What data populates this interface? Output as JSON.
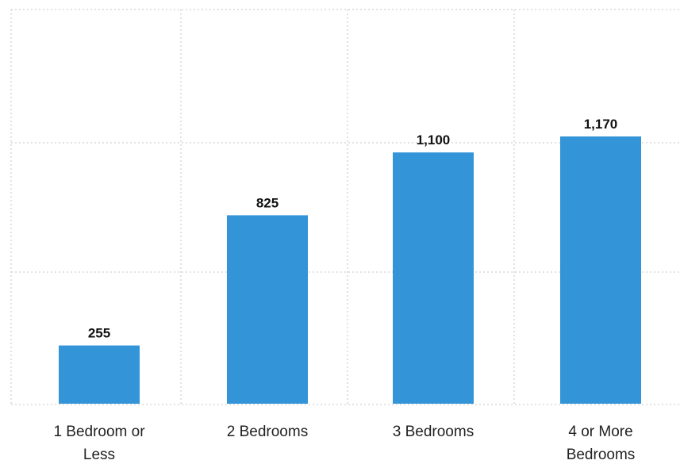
{
  "chart_data": {
    "type": "bar",
    "categories": [
      "1 Bedroom or Less",
      "2 Bedrooms",
      "3 Bedrooms",
      "4 or More Bedrooms"
    ],
    "category_label_lines": [
      [
        "1 Bedroom or",
        "Less"
      ],
      [
        "2 Bedrooms"
      ],
      [
        "3 Bedrooms"
      ],
      [
        "4 or More",
        "Bedrooms"
      ]
    ],
    "values": [
      255,
      825,
      1100,
      1170
    ],
    "value_labels": [
      "255",
      "825",
      "1,100",
      "1,170"
    ],
    "title": "",
    "xlabel": "",
    "ylabel": "",
    "ylim": [
      0,
      1500
    ],
    "grid": true,
    "bar_color": "#3494d8",
    "legend": "none"
  }
}
